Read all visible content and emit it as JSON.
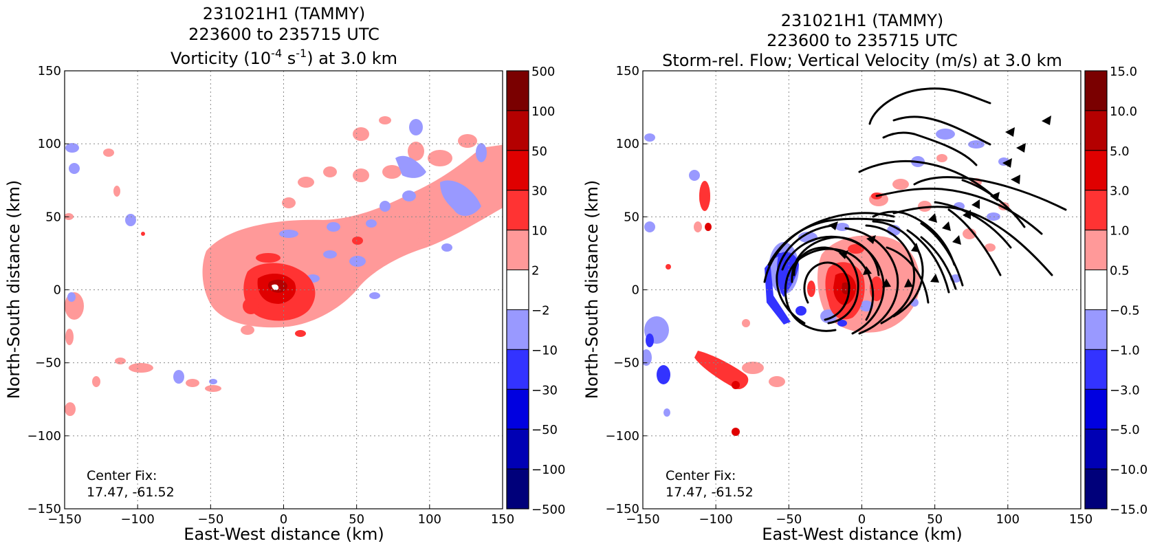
{
  "chart_data": [
    {
      "type": "heatmap",
      "title_lines": [
        "231021H1 (TAMMY)",
        "223600 to 235715 UTC"
      ],
      "title_var_prefix": "Vorticity (10",
      "title_var_exp1": "-4",
      "title_var_mid": " s",
      "title_var_exp2": "-1",
      "title_var_suffix": ") at 3.0 km",
      "xlabel": "East-West distance (km)",
      "ylabel": "North-South distance (km)",
      "xlim": [
        -150,
        150
      ],
      "ylim": [
        -150,
        150
      ],
      "xticks": [
        -150,
        -100,
        -50,
        0,
        50,
        100,
        150
      ],
      "yticks": [
        -150,
        -100,
        -50,
        0,
        50,
        100,
        150
      ],
      "xtick_labels": [
        "−150",
        "−100",
        "−50",
        "0",
        "50",
        "100",
        "150"
      ],
      "ytick_labels": [
        "−150",
        "−100",
        "−50",
        "0",
        "50",
        "100",
        "150"
      ],
      "grid": true,
      "annotation_lines": [
        "Center Fix:",
        "17.47, -61.52"
      ],
      "colorbar": {
        "labels": [
          "500",
          "100",
          "50",
          "30",
          "10",
          "2",
          "−2",
          "−10",
          "−30",
          "−50",
          "−100",
          "−500"
        ],
        "colors": [
          "#7a0000",
          "#b40000",
          "#e00000",
          "#ff3333",
          "#ff9999",
          "#ffffff",
          "#9999ff",
          "#3333ff",
          "#0000e0",
          "#0000b4",
          "#00007a"
        ]
      }
    },
    {
      "type": "heatmap",
      "title_lines": [
        "231021H1 (TAMMY)",
        "223600 to 235715 UTC",
        "Storm-rel. Flow; Vertical Velocity (m/s) at 3.0 km"
      ],
      "xlabel": "East-West distance (km)",
      "ylabel": "North-South distance (km)",
      "xlim": [
        -150,
        150
      ],
      "ylim": [
        -150,
        150
      ],
      "xticks": [
        -150,
        -100,
        -50,
        0,
        50,
        100,
        150
      ],
      "yticks": [
        -150,
        -100,
        -50,
        0,
        50,
        100,
        150
      ],
      "xtick_labels": [
        "−150",
        "−100",
        "−50",
        "0",
        "50",
        "100",
        "150"
      ],
      "ytick_labels": [
        "−150",
        "−100",
        "−50",
        "0",
        "50",
        "100",
        "150"
      ],
      "grid": true,
      "annotation_lines": [
        "Center Fix:",
        "17.47, -61.52"
      ],
      "colorbar": {
        "labels": [
          "15.0",
          "10.0",
          "5.0",
          "3.0",
          "1.0",
          "0.5",
          "−0.5",
          "−1.0",
          "−3.0",
          "−5.0",
          "−10.0",
          "−15.0"
        ],
        "colors": [
          "#7a0000",
          "#b40000",
          "#e00000",
          "#ff3333",
          "#ff9999",
          "#ffffff",
          "#9999ff",
          "#3333ff",
          "#0000e0",
          "#0000b4",
          "#00007a"
        ]
      }
    }
  ]
}
